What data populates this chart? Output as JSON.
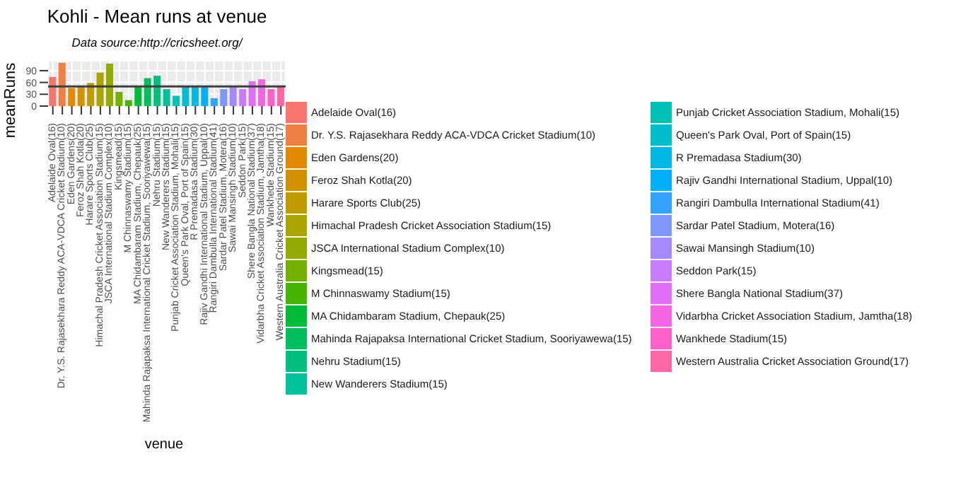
{
  "chart_data": {
    "type": "bar",
    "title": "Kohli - Mean runs at venue",
    "subtitle": "Data source:http://cricsheet.org/",
    "xlabel": "venue",
    "ylabel": "meanRuns",
    "categories": [
      "Adelaide Oval(16)",
      "Dr. Y.S. Rajasekhara Reddy ACA-VDCA Cricket Stadium(10)",
      "Eden Gardens(20)",
      "Feroz Shah Kotla(20)",
      "Harare Sports Club(25)",
      "Himachal Pradesh Cricket Association Stadium(15)",
      "JSCA International Stadium Complex(10)",
      "Kingsmead(15)",
      "M Chinnaswamy Stadium(15)",
      "MA Chidambaram Stadium, Chepauk(25)",
      "Mahinda Rajapaksa International Cricket Stadium, Sooriyawewa(15)",
      "Nehru Stadium(15)",
      "New Wanderers Stadium(15)",
      "Punjab Cricket Association Stadium, Mohali(15)",
      "Queen's Park Oval, Port of Spain(15)",
      "R Premadasa Stadium(30)",
      "Rajiv Gandhi International Stadium, Uppal(10)",
      "Rangiri Dambulla International Stadium(41)",
      "Sardar Patel Stadium, Motera(16)",
      "Sawai Mansingh Stadium(10)",
      "Seddon Park(15)",
      "Shere Bangla National Stadium(37)",
      "Vidarbha Cricket Association Stadium, Jamtha(18)",
      "Wankhede Stadium(15)",
      "Western Australia Cricket Association Ground(17)"
    ],
    "stacked": true,
    "series": [
      {
        "name": "Adelaide Oval(16)",
        "color": "#F8766D",
        "values": [
          74,
          null,
          null,
          null,
          null,
          null,
          null,
          null,
          null,
          null,
          null,
          null,
          null,
          null,
          null,
          null,
          null,
          null,
          null,
          null,
          null,
          null,
          null,
          null,
          null
        ]
      },
      {
        "name": "Dr. Y.S. Rajasekhara Reddy ACA-VDCA Cricket Stadium(10)",
        "color": "#EE8044",
        "values": [
          null,
          110,
          null,
          null,
          null,
          null,
          null,
          null,
          null,
          null,
          null,
          null,
          null,
          null,
          null,
          null,
          null,
          null,
          null,
          null,
          null,
          null,
          null,
          null,
          null
        ]
      },
      {
        "name": "Eden Gardens(20)",
        "color": "#E18A00",
        "values": [
          null,
          null,
          46,
          null,
          null,
          null,
          null,
          null,
          null,
          null,
          null,
          null,
          null,
          null,
          null,
          null,
          null,
          null,
          null,
          null,
          null,
          null,
          null,
          null,
          null
        ]
      },
      {
        "name": "Feroz Shah Kotla(20)",
        "color": "#D29200",
        "values": [
          null,
          null,
          null,
          51,
          null,
          null,
          null,
          null,
          null,
          null,
          null,
          null,
          null,
          null,
          null,
          null,
          null,
          null,
          null,
          null,
          null,
          null,
          null,
          null,
          null
        ]
      },
      {
        "name": "Harare Sports Club(25)",
        "color": "#C09B00",
        "values": [
          null,
          null,
          null,
          null,
          59,
          null,
          null,
          null,
          null,
          null,
          null,
          null,
          null,
          null,
          null,
          null,
          null,
          null,
          null,
          null,
          null,
          null,
          null,
          null,
          null
        ]
      },
      {
        "name": "Himachal Pradesh Cricket Association Stadium(15)",
        "color": "#ABA300",
        "values": [
          null,
          null,
          null,
          null,
          null,
          85,
          null,
          null,
          null,
          null,
          null,
          null,
          null,
          null,
          null,
          null,
          null,
          null,
          null,
          null,
          null,
          null,
          null,
          null,
          null
        ]
      },
      {
        "name": "JSCA International Stadium Complex(10)",
        "color": "#93AA00",
        "values": [
          null,
          null,
          null,
          null,
          null,
          null,
          108,
          null,
          null,
          null,
          null,
          null,
          null,
          null,
          null,
          null,
          null,
          null,
          null,
          null,
          null,
          null,
          null,
          null,
          null
        ]
      },
      {
        "name": "Kingsmead(15)",
        "color": "#74B000",
        "values": [
          null,
          null,
          null,
          null,
          null,
          null,
          null,
          36,
          null,
          null,
          null,
          null,
          null,
          null,
          null,
          null,
          null,
          null,
          null,
          null,
          null,
          null,
          null,
          null,
          null
        ]
      },
      {
        "name": "M Chinnaswamy Stadium(15)",
        "color": "#45B500",
        "values": [
          null,
          null,
          null,
          null,
          null,
          null,
          null,
          null,
          15,
          null,
          null,
          null,
          null,
          null,
          null,
          null,
          null,
          null,
          null,
          null,
          null,
          null,
          null,
          null,
          null
        ]
      },
      {
        "name": "MA Chidambaram Stadium, Chepauk(25)",
        "color": "#00BA38",
        "values": [
          null,
          null,
          null,
          null,
          null,
          null,
          null,
          null,
          null,
          51,
          null,
          null,
          null,
          null,
          null,
          null,
          null,
          null,
          null,
          null,
          null,
          null,
          null,
          null,
          null
        ]
      },
      {
        "name": "Mahinda Rajapaksa International Cricket Stadium, Sooriyawewa(15)",
        "color": "#00BD5D",
        "values": [
          null,
          null,
          null,
          null,
          null,
          null,
          null,
          null,
          null,
          null,
          71,
          null,
          null,
          null,
          null,
          null,
          null,
          null,
          null,
          null,
          null,
          null,
          null,
          null,
          null
        ]
      },
      {
        "name": "Nehru Stadium(15)",
        "color": "#00BF7D",
        "values": [
          null,
          null,
          null,
          null,
          null,
          null,
          null,
          null,
          null,
          null,
          null,
          77,
          null,
          null,
          null,
          null,
          null,
          null,
          null,
          null,
          null,
          null,
          null,
          null,
          null
        ]
      },
      {
        "name": "New Wanderers Stadium(15)",
        "color": "#00C19A",
        "values": [
          null,
          null,
          null,
          null,
          null,
          null,
          null,
          null,
          null,
          null,
          null,
          null,
          43,
          null,
          null,
          null,
          null,
          null,
          null,
          null,
          null,
          null,
          null,
          null,
          null
        ]
      },
      {
        "name": "Punjab Cricket Association Stadium, Mohali(15)",
        "color": "#00C0B5",
        "values": [
          null,
          null,
          null,
          null,
          null,
          null,
          null,
          null,
          null,
          null,
          null,
          null,
          null,
          26,
          null,
          null,
          null,
          null,
          null,
          null,
          null,
          null,
          null,
          null,
          null
        ]
      },
      {
        "name": "Queen's Park Oval, Port of Spain(15)",
        "color": "#00BDCD",
        "values": [
          null,
          null,
          null,
          null,
          null,
          null,
          null,
          null,
          null,
          null,
          null,
          null,
          null,
          null,
          52,
          null,
          null,
          null,
          null,
          null,
          null,
          null,
          null,
          null,
          null
        ]
      },
      {
        "name": "R Premadasa Stadium(30)",
        "color": "#00B8E3",
        "values": [
          null,
          null,
          null,
          null,
          null,
          null,
          null,
          null,
          null,
          null,
          null,
          null,
          null,
          null,
          null,
          49,
          null,
          null,
          null,
          null,
          null,
          null,
          null,
          null,
          null
        ]
      },
      {
        "name": "Rajiv Gandhi International Stadium, Uppal(10)",
        "color": "#00B0F6",
        "values": [
          null,
          null,
          null,
          null,
          null,
          null,
          null,
          null,
          null,
          null,
          null,
          null,
          null,
          null,
          null,
          null,
          48,
          null,
          null,
          null,
          null,
          null,
          null,
          null,
          null
        ]
      },
      {
        "name": "Rangiri Dambulla International Stadium(41)",
        "color": "#35A2FF",
        "values": [
          null,
          null,
          null,
          null,
          null,
          null,
          null,
          null,
          null,
          null,
          null,
          null,
          null,
          null,
          null,
          null,
          null,
          20,
          null,
          null,
          null,
          null,
          null,
          null,
          null
        ]
      },
      {
        "name": "Sardar Patel Stadium, Motera(16)",
        "color": "#7F96FF",
        "values": [
          null,
          null,
          null,
          null,
          null,
          null,
          null,
          null,
          null,
          null,
          null,
          null,
          null,
          null,
          null,
          null,
          null,
          null,
          43,
          null,
          null,
          null,
          null,
          null,
          null
        ]
      },
      {
        "name": "Sawai Mansingh Stadium(10)",
        "color": "#A58AFF",
        "values": [
          null,
          null,
          null,
          null,
          null,
          null,
          null,
          null,
          null,
          null,
          null,
          null,
          null,
          null,
          null,
          null,
          null,
          null,
          null,
          48,
          null,
          null,
          null,
          null,
          null
        ]
      },
      {
        "name": "Seddon Park(15)",
        "color": "#C77CFF",
        "values": [
          null,
          null,
          null,
          null,
          null,
          null,
          null,
          null,
          null,
          null,
          null,
          null,
          null,
          null,
          null,
          null,
          null,
          null,
          null,
          null,
          43,
          null,
          null,
          null,
          null
        ]
      },
      {
        "name": "Shere Bangla National Stadium(37)",
        "color": "#E16FF5",
        "values": [
          null,
          null,
          null,
          null,
          null,
          null,
          null,
          null,
          null,
          null,
          null,
          null,
          null,
          null,
          null,
          null,
          null,
          null,
          null,
          null,
          null,
          63,
          null,
          null,
          null
        ]
      },
      {
        "name": "Vidarbha Cricket Association Stadium, Jamtha(18)",
        "color": "#F365E2",
        "values": [
          null,
          null,
          null,
          null,
          null,
          null,
          null,
          null,
          null,
          null,
          null,
          null,
          null,
          null,
          null,
          null,
          null,
          null,
          null,
          null,
          null,
          null,
          68,
          null,
          null
        ]
      },
      {
        "name": "Wankhede Stadium(15)",
        "color": "#FD61C9",
        "values": [
          null,
          null,
          null,
          null,
          null,
          null,
          null,
          null,
          null,
          null,
          null,
          null,
          null,
          null,
          null,
          null,
          null,
          null,
          null,
          null,
          null,
          null,
          null,
          43,
          null
        ]
      },
      {
        "name": "Western Australia Cricket Association Ground(17)",
        "color": "#FF67A6",
        "values": [
          null,
          null,
          null,
          null,
          null,
          null,
          null,
          null,
          null,
          null,
          null,
          null,
          null,
          null,
          null,
          null,
          null,
          null,
          null,
          null,
          null,
          null,
          null,
          null,
          51
        ]
      }
    ],
    "ylim": [
      0,
      115
    ],
    "yticks": [
      0,
      30,
      60,
      90
    ],
    "grid": true,
    "legend": "right",
    "ref_lines": [
      {
        "axis": "y",
        "value": 50,
        "color": "#404040"
      }
    ]
  }
}
